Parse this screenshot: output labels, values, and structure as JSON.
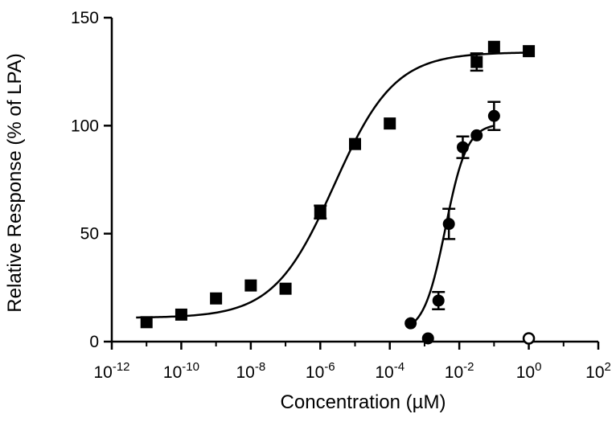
{
  "chart_data": {
    "type": "scatter",
    "xscale": "log10",
    "xlabel": "Concentration (µM)",
    "ylabel": "Relative Response (% of LPA)",
    "xlim_log10": [
      -12,
      2
    ],
    "ylim": [
      0,
      150
    ],
    "x_tick_exponents": [
      -12,
      -10,
      -8,
      -6,
      -4,
      -2,
      0,
      2
    ],
    "x_tick_base": "10",
    "y_ticks": [
      0,
      50,
      100,
      150
    ],
    "grid": false,
    "series": [
      {
        "name": "squares",
        "marker": "square",
        "color": "#000000",
        "points": [
          {
            "log_x": -11,
            "y": 9,
            "err": 0
          },
          {
            "log_x": -10,
            "y": 12.5,
            "err": 0
          },
          {
            "log_x": -9,
            "y": 20,
            "err": 0
          },
          {
            "log_x": -8,
            "y": 26,
            "err": 0
          },
          {
            "log_x": -7,
            "y": 24.5,
            "err": 0
          },
          {
            "log_x": -6,
            "y": 60,
            "err": 3
          },
          {
            "log_x": -5,
            "y": 91.5,
            "err": 0
          },
          {
            "log_x": -4,
            "y": 101,
            "err": 0
          },
          {
            "log_x": -1.5,
            "y": 129.5,
            "err": 4
          },
          {
            "log_x": -1,
            "y": 136.5,
            "err": 0
          },
          {
            "log_x": 0,
            "y": 134.5,
            "err": 0
          }
        ],
        "fit": {
          "bottom": 11,
          "top": 134,
          "log_ec50": -5.6,
          "hill": 0.5
        }
      },
      {
        "name": "circles",
        "marker": "circle",
        "color": "#000000",
        "points": [
          {
            "log_x": -3.4,
            "y": 8.5,
            "err": 0
          },
          {
            "log_x": -2.9,
            "y": 1.5,
            "err": 0
          },
          {
            "log_x": -2.6,
            "y": 19,
            "err": 4
          },
          {
            "log_x": -2.3,
            "y": 54.5,
            "err": 7
          },
          {
            "log_x": -1.9,
            "y": 90,
            "err": 5
          },
          {
            "log_x": -1.5,
            "y": 95.5,
            "err": 0
          },
          {
            "log_x": -1.0,
            "y": 104.5,
            "err": 6.5
          }
        ],
        "fit": {
          "bottom": 4,
          "top": 101,
          "log_ec50": -2.4,
          "hill": 1.4,
          "log_x_min": -3.5,
          "log_x_max": -1.0
        }
      },
      {
        "name": "open circles",
        "marker": "open-circle",
        "color": "#000000",
        "points": [
          {
            "log_x": 0,
            "y": 1.5,
            "err": 0
          }
        ]
      }
    ]
  }
}
